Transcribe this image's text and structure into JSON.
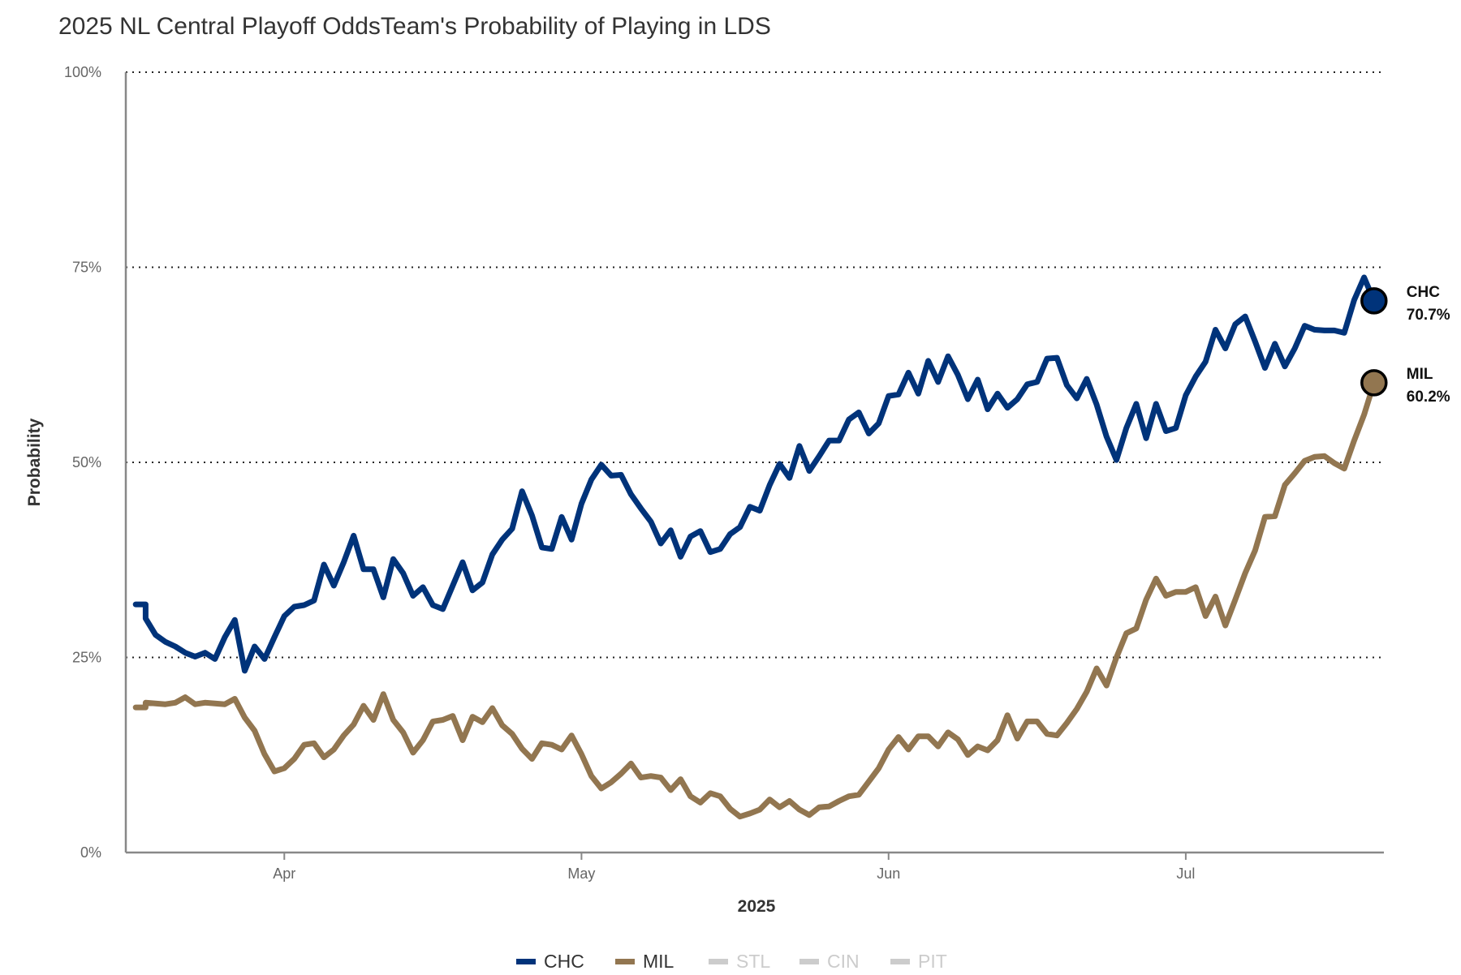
{
  "chart_data": {
    "type": "line",
    "title": "2025 NL Central Playoff OddsTeam's Probability of Playing in LDS",
    "xlabel": "2025",
    "ylabel": "Probability",
    "xlim": [
      "2025-03-16",
      "2025-07-21"
    ],
    "ylim": [
      0,
      100
    ],
    "y_ticks": [
      "0%",
      "25%",
      "50%",
      "75%",
      "100%"
    ],
    "y_tick_values": [
      0,
      25,
      50,
      75,
      100
    ],
    "x_ticks": [
      {
        "label": "Apr",
        "date": "2025-04-01"
      },
      {
        "label": "May",
        "date": "2025-05-01"
      },
      {
        "label": "Jun",
        "date": "2025-06-01"
      },
      {
        "label": "Jul",
        "date": "2025-07-01"
      }
    ],
    "grid": "horizontal dotted",
    "legend_position": "bottom",
    "x": [
      "2025-03-17",
      "2025-03-18",
      "2025-03-18",
      "2025-03-19",
      "2025-03-20",
      "2025-03-21",
      "2025-03-22",
      "2025-03-23",
      "2025-03-24",
      "2025-03-25",
      "2025-03-26",
      "2025-03-27",
      "2025-03-28",
      "2025-03-29",
      "2025-03-30",
      "2025-03-31",
      "2025-04-01",
      "2025-04-02",
      "2025-04-03",
      "2025-04-04",
      "2025-04-05",
      "2025-04-06",
      "2025-04-07",
      "2025-04-08",
      "2025-04-09",
      "2025-04-10",
      "2025-04-11",
      "2025-04-12",
      "2025-04-13",
      "2025-04-14",
      "2025-04-15",
      "2025-04-16",
      "2025-04-17",
      "2025-04-18",
      "2025-04-19",
      "2025-04-20",
      "2025-04-21",
      "2025-04-22",
      "2025-04-23",
      "2025-04-24",
      "2025-04-25",
      "2025-04-26",
      "2025-04-27",
      "2025-04-28",
      "2025-04-29",
      "2025-04-30",
      "2025-05-01",
      "2025-05-02",
      "2025-05-03",
      "2025-05-04",
      "2025-05-05",
      "2025-05-06",
      "2025-05-07",
      "2025-05-08",
      "2025-05-09",
      "2025-05-10",
      "2025-05-11",
      "2025-05-12",
      "2025-05-13",
      "2025-05-14",
      "2025-05-15",
      "2025-05-16",
      "2025-05-17",
      "2025-05-18",
      "2025-05-19",
      "2025-05-20",
      "2025-05-21",
      "2025-05-22",
      "2025-05-23",
      "2025-05-24",
      "2025-05-25",
      "2025-05-26",
      "2025-05-27",
      "2025-05-28",
      "2025-05-29",
      "2025-05-30",
      "2025-05-31",
      "2025-06-01",
      "2025-06-02",
      "2025-06-03",
      "2025-06-04",
      "2025-06-05",
      "2025-06-06",
      "2025-06-07",
      "2025-06-08",
      "2025-06-09",
      "2025-06-10",
      "2025-06-11",
      "2025-06-12",
      "2025-06-13",
      "2025-06-14",
      "2025-06-15",
      "2025-06-16",
      "2025-06-17",
      "2025-06-18",
      "2025-06-19",
      "2025-06-20",
      "2025-06-21",
      "2025-06-22",
      "2025-06-23",
      "2025-06-24",
      "2025-06-25",
      "2025-06-26",
      "2025-06-27",
      "2025-06-28",
      "2025-06-29",
      "2025-06-30",
      "2025-07-01",
      "2025-07-02",
      "2025-07-03",
      "2025-07-04",
      "2025-07-05",
      "2025-07-06",
      "2025-07-07",
      "2025-07-08",
      "2025-07-09",
      "2025-07-10",
      "2025-07-11",
      "2025-07-12",
      "2025-07-13",
      "2025-07-14",
      "2025-07-15",
      "2025-07-16",
      "2025-07-17",
      "2025-07-18",
      "2025-07-19",
      "2025-07-20"
    ],
    "series": [
      {
        "name": "CHC",
        "color": "#00337a",
        "active": true,
        "end_label": "70.7%",
        "values": [
          31.8,
          31.8,
          30.0,
          27.9,
          27.0,
          26.4,
          25.6,
          25.1,
          25.6,
          24.8,
          27.6,
          29.8,
          23.3,
          26.4,
          24.8,
          27.6,
          30.3,
          31.5,
          31.7,
          32.3,
          36.9,
          34.2,
          37.2,
          40.6,
          36.3,
          36.3,
          32.7,
          37.6,
          35.8,
          32.9,
          34.0,
          31.7,
          31.2,
          34.2,
          37.2,
          33.6,
          34.6,
          38.2,
          40.1,
          41.5,
          46.3,
          43.2,
          39.1,
          38.9,
          43.0,
          40.1,
          44.7,
          47.8,
          49.7,
          48.3,
          48.4,
          45.9,
          44.1,
          42.4,
          39.6,
          41.3,
          37.9,
          40.5,
          41.2,
          38.5,
          38.9,
          40.8,
          41.7,
          44.3,
          43.8,
          47.1,
          49.8,
          48.0,
          52.1,
          48.9,
          50.8,
          52.8,
          52.8,
          55.5,
          56.4,
          53.7,
          55.0,
          58.5,
          58.7,
          61.5,
          58.8,
          63.0,
          60.3,
          63.6,
          61.2,
          58.1,
          60.6,
          56.8,
          58.8,
          57.0,
          58.1,
          60.0,
          60.3,
          63.3,
          63.4,
          59.9,
          58.2,
          60.7,
          57.4,
          53.3,
          50.3,
          54.4,
          57.5,
          53.1,
          57.5,
          54.0,
          54.4,
          58.6,
          61.0,
          62.9,
          67.0,
          64.6,
          67.7,
          68.7,
          65.5,
          62.1,
          65.2,
          62.3,
          64.6,
          67.5,
          67.0,
          66.9,
          66.9,
          66.6,
          70.8,
          73.7,
          70.7
        ]
      },
      {
        "name": "MIL",
        "color": "#927650",
        "active": true,
        "end_label": "60.2%",
        "values": [
          18.6,
          18.6,
          19.2,
          19.1,
          19.0,
          19.2,
          19.9,
          19.0,
          19.2,
          19.1,
          19.0,
          19.7,
          17.3,
          15.6,
          12.6,
          10.4,
          10.8,
          12.0,
          13.8,
          14.0,
          12.2,
          13.2,
          15.0,
          16.4,
          18.8,
          17.0,
          20.3,
          17.0,
          15.4,
          12.8,
          14.4,
          16.8,
          17.0,
          17.5,
          14.4,
          17.4,
          16.7,
          18.5,
          16.3,
          15.2,
          13.3,
          12.0,
          14.0,
          13.8,
          13.2,
          15.0,
          12.6,
          9.8,
          8.2,
          9.0,
          10.1,
          11.4,
          9.6,
          9.8,
          9.6,
          8.0,
          9.4,
          7.2,
          6.4,
          7.6,
          7.2,
          5.6,
          4.6,
          5.0,
          5.5,
          6.8,
          5.8,
          6.6,
          5.5,
          4.8,
          5.8,
          5.9,
          6.6,
          7.2,
          7.4,
          9.1,
          10.8,
          13.2,
          14.8,
          13.2,
          14.9,
          14.9,
          13.6,
          15.4,
          14.5,
          12.5,
          13.6,
          13.1,
          14.4,
          17.6,
          14.6,
          16.8,
          16.8,
          15.2,
          15.0,
          16.6,
          18.4,
          20.6,
          23.6,
          21.4,
          25.0,
          28.1,
          28.7,
          32.4,
          35.1,
          32.9,
          33.4,
          33.4,
          34.0,
          30.3,
          32.8,
          29.1,
          32.4,
          35.8,
          38.7,
          43.0,
          43.1,
          47.1,
          48.6,
          50.2,
          50.7,
          50.8,
          49.9,
          49.2,
          52.8,
          56.1,
          60.2
        ]
      },
      {
        "name": "STL",
        "color": "#cccccc",
        "active": false
      },
      {
        "name": "CIN",
        "color": "#cccccc",
        "active": false
      },
      {
        "name": "PIT",
        "color": "#cccccc",
        "active": false
      }
    ]
  }
}
